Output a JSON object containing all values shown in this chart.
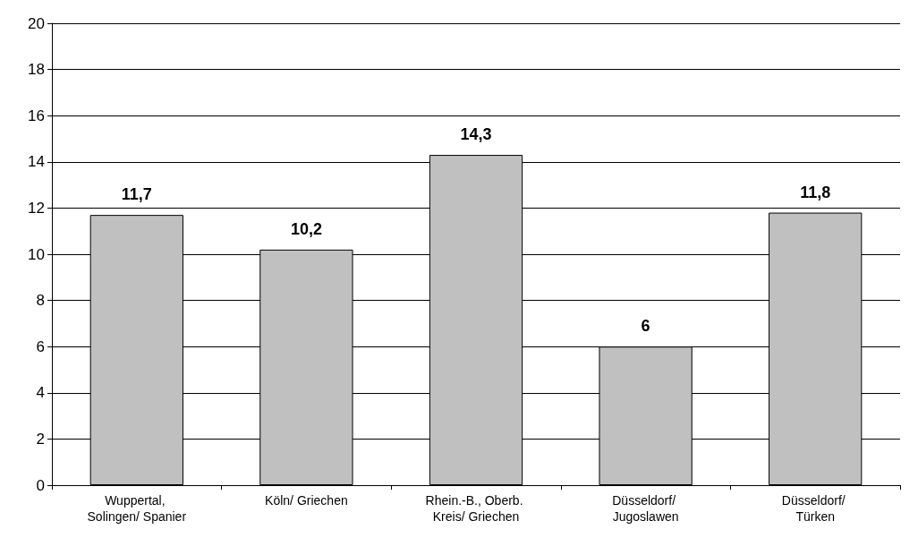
{
  "chart_data": {
    "type": "bar",
    "categories": [
      "Wuppertal, Solingen/ Spanier",
      "Köln/ Griechen",
      "Rhein.-B., Oberb. Kreis/ Griechen",
      "Düsseldorf/ Jugoslawen",
      "Düsseldorf/ Türken"
    ],
    "values": [
      11.7,
      10.2,
      14.3,
      6,
      11.8
    ],
    "value_labels": [
      "11,7",
      "10,2",
      "14,3",
      "6",
      "11,8"
    ],
    "color": "#c0c0c0",
    "ylim": [
      0,
      20
    ],
    "yticks": [
      0,
      2,
      4,
      6,
      8,
      10,
      12,
      14,
      16,
      18,
      20
    ],
    "grid": "y"
  }
}
